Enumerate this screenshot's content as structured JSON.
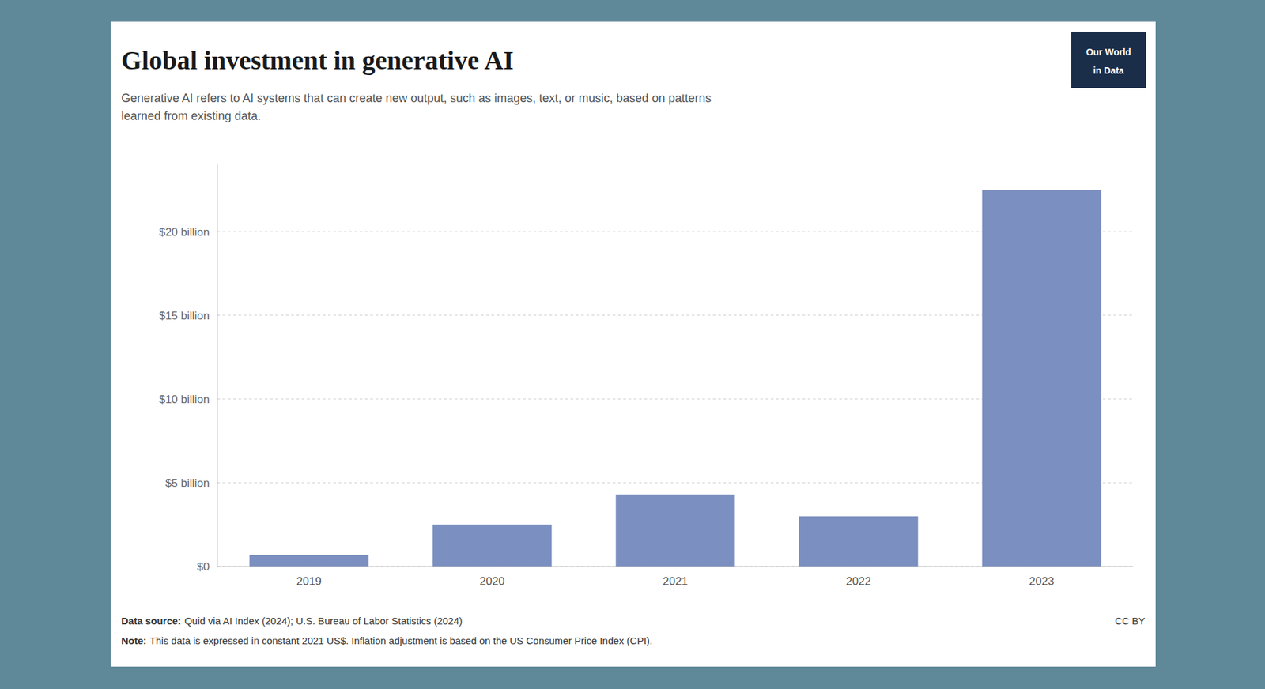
{
  "chart_data": {
    "type": "bar",
    "title": "Global investment in generative AI",
    "subtitle": "Generative AI refers to AI systems that can create new output, such as images, text, or music, based on patterns\nlearned from existing data.",
    "categories": [
      "2019",
      "2020",
      "2021",
      "2022",
      "2023"
    ],
    "values": [
      0.67,
      2.5,
      4.3,
      3.0,
      22.5
    ],
    "color": "#7b8fc0",
    "ylim": [
      0,
      24
    ],
    "yticks": [
      {
        "value": 0,
        "label": "$0"
      },
      {
        "value": 5,
        "label": "$5 billion"
      },
      {
        "value": 10,
        "label": "$10 billion"
      },
      {
        "value": 15,
        "label": "$15 billion"
      },
      {
        "value": 20,
        "label": "$20 billion"
      }
    ],
    "grid": true,
    "annotations": [
      "Data source:",
      "Quid via AI Index (2024); U.S. Bureau of Labor Statistics (2024)",
      "Note:",
      "This data is expressed in constant 2021 US$. Inflation adjustment is based on the US Consumer Price Index (CPI).",
      "CC BY",
      "Our World",
      "in Data"
    ]
  }
}
